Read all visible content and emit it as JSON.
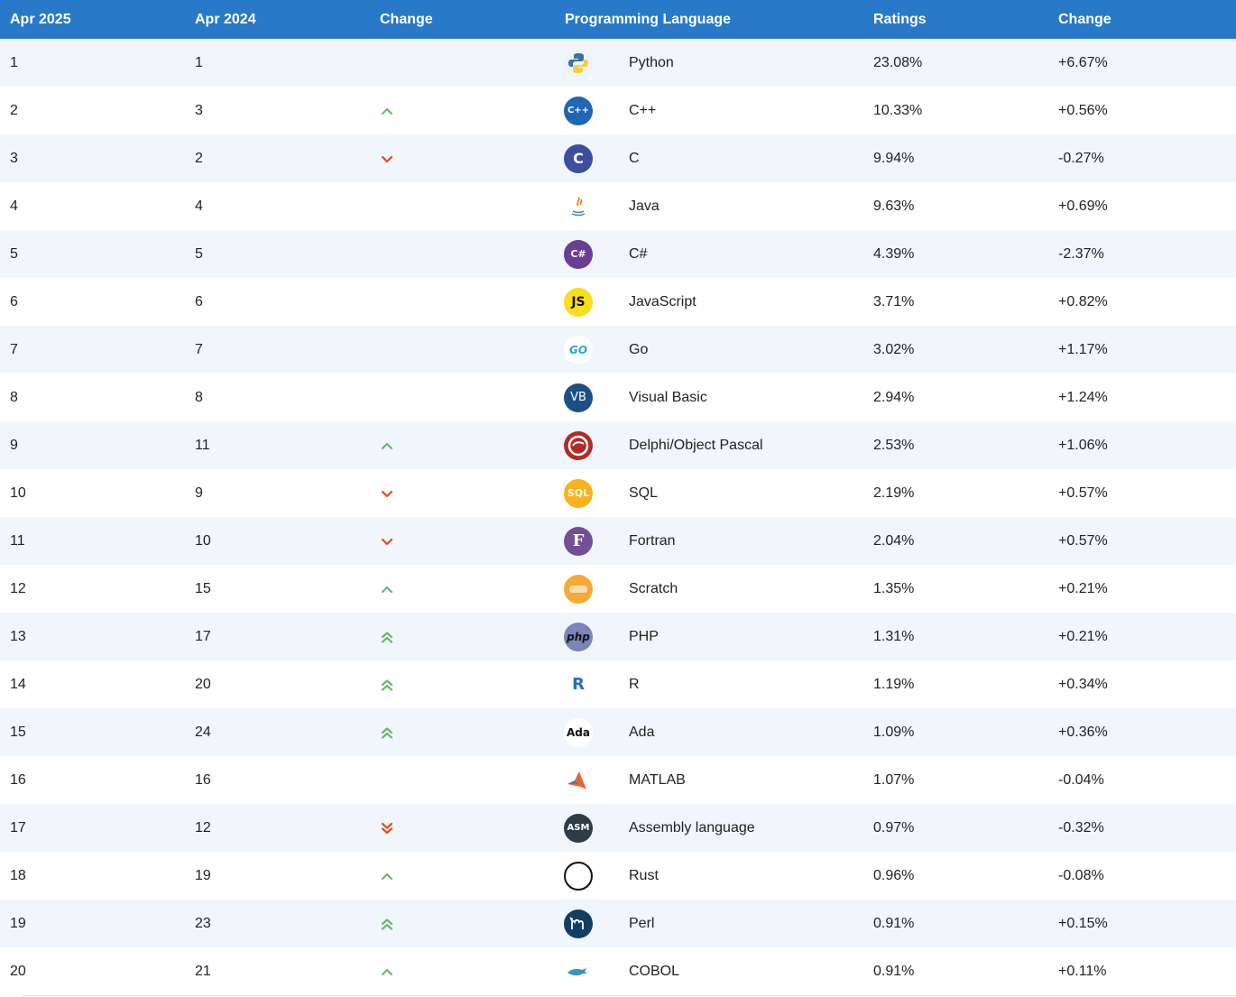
{
  "header": {
    "col_apr2025": "Apr 2025",
    "col_apr2024": "Apr 2024",
    "col_change": "Change",
    "col_language": "Programming Language",
    "col_ratings": "Ratings",
    "col_change2": "Change"
  },
  "colors": {
    "header_bg": "#2979c9",
    "up": "#66bb6a",
    "down": "#e64a19"
  },
  "rows": [
    {
      "rank": "1",
      "prev": "1",
      "trend": "none",
      "lang": "Python",
      "rating": "23.08%",
      "change": "+6.67%",
      "icon": "python-icon"
    },
    {
      "rank": "2",
      "prev": "3",
      "trend": "up",
      "lang": "C++",
      "rating": "10.33%",
      "change": "+0.56%",
      "icon": "cpp-icon"
    },
    {
      "rank": "3",
      "prev": "2",
      "trend": "down",
      "lang": "C",
      "rating": "9.94%",
      "change": "-0.27%",
      "icon": "c-icon"
    },
    {
      "rank": "4",
      "prev": "4",
      "trend": "none",
      "lang": "Java",
      "rating": "9.63%",
      "change": "+0.69%",
      "icon": "java-icon"
    },
    {
      "rank": "5",
      "prev": "5",
      "trend": "none",
      "lang": "C#",
      "rating": "4.39%",
      "change": "-2.37%",
      "icon": "csharp-icon"
    },
    {
      "rank": "6",
      "prev": "6",
      "trend": "none",
      "lang": "JavaScript",
      "rating": "3.71%",
      "change": "+0.82%",
      "icon": "javascript-icon"
    },
    {
      "rank": "7",
      "prev": "7",
      "trend": "none",
      "lang": "Go",
      "rating": "3.02%",
      "change": "+1.17%",
      "icon": "go-icon"
    },
    {
      "rank": "8",
      "prev": "8",
      "trend": "none",
      "lang": "Visual Basic",
      "rating": "2.94%",
      "change": "+1.24%",
      "icon": "visual-basic-icon"
    },
    {
      "rank": "9",
      "prev": "11",
      "trend": "up",
      "lang": "Delphi/Object Pascal",
      "rating": "2.53%",
      "change": "+1.06%",
      "icon": "delphi-icon"
    },
    {
      "rank": "10",
      "prev": "9",
      "trend": "down",
      "lang": "SQL",
      "rating": "2.19%",
      "change": "+0.57%",
      "icon": "sql-icon"
    },
    {
      "rank": "11",
      "prev": "10",
      "trend": "down",
      "lang": "Fortran",
      "rating": "2.04%",
      "change": "+0.57%",
      "icon": "fortran-icon"
    },
    {
      "rank": "12",
      "prev": "15",
      "trend": "up",
      "lang": "Scratch",
      "rating": "1.35%",
      "change": "+0.21%",
      "icon": "scratch-icon"
    },
    {
      "rank": "13",
      "prev": "17",
      "trend": "up2",
      "lang": "PHP",
      "rating": "1.31%",
      "change": "+0.21%",
      "icon": "php-icon"
    },
    {
      "rank": "14",
      "prev": "20",
      "trend": "up2",
      "lang": "R",
      "rating": "1.19%",
      "change": "+0.34%",
      "icon": "r-icon"
    },
    {
      "rank": "15",
      "prev": "24",
      "trend": "up2",
      "lang": "Ada",
      "rating": "1.09%",
      "change": "+0.36%",
      "icon": "ada-icon"
    },
    {
      "rank": "16",
      "prev": "16",
      "trend": "none",
      "lang": "MATLAB",
      "rating": "1.07%",
      "change": "-0.04%",
      "icon": "matlab-icon"
    },
    {
      "rank": "17",
      "prev": "12",
      "trend": "down2",
      "lang": "Assembly language",
      "rating": "0.97%",
      "change": "-0.32%",
      "icon": "assembly-icon"
    },
    {
      "rank": "18",
      "prev": "19",
      "trend": "up",
      "lang": "Rust",
      "rating": "0.96%",
      "change": "-0.08%",
      "icon": "rust-icon"
    },
    {
      "rank": "19",
      "prev": "23",
      "trend": "up2",
      "lang": "Perl",
      "rating": "0.91%",
      "change": "+0.15%",
      "icon": "perl-icon"
    },
    {
      "rank": "20",
      "prev": "21",
      "trend": "up",
      "lang": "COBOL",
      "rating": "0.91%",
      "change": "+0.11%",
      "icon": "cobol-icon"
    }
  ],
  "logos": {
    "cpp-icon": "C++",
    "c-icon": "C",
    "csharp-icon": "C#",
    "javascript-icon": "JS",
    "go-icon": "GO",
    "visual-basic-icon": "VB",
    "sql-icon": "SQL",
    "fortran-icon": "F",
    "php-icon": "php",
    "r-icon": "R",
    "ada-icon": "Ada",
    "assembly-icon": "ASM"
  }
}
